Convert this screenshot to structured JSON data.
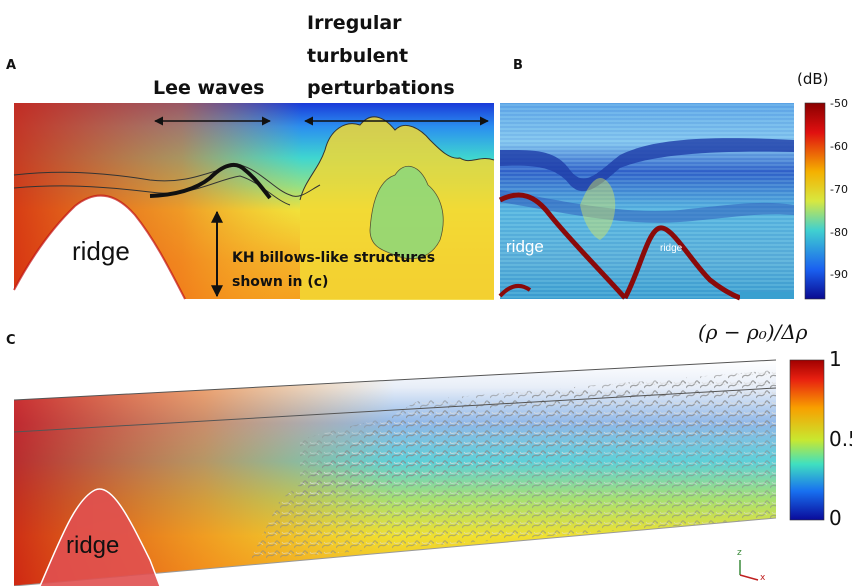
{
  "panel_a": {
    "letter": "A",
    "annotation_lee": "Lee waves",
    "annotation_irregular": [
      "Irregular",
      "turbulent",
      "perturbations"
    ],
    "ridge_label": "ridge",
    "kh_label": [
      "KH billows-like structures",
      "shown in (c)"
    ]
  },
  "panel_b": {
    "letter": "B",
    "unit_label": "(dB)",
    "colorbar_ticks": [
      "-50",
      "-60",
      "-70",
      "-80",
      "-90"
    ],
    "ridge_label_1": "ridge",
    "ridge_label_2": "ridge"
  },
  "panel_c": {
    "letter": "C",
    "colorbar_title": "(ρ − ρ₀)/Δρ",
    "colorbar_ticks": [
      "1",
      "0.5",
      "0"
    ],
    "ridge_label": "ridge",
    "axis_glyphs": [
      "z",
      "x"
    ]
  }
}
